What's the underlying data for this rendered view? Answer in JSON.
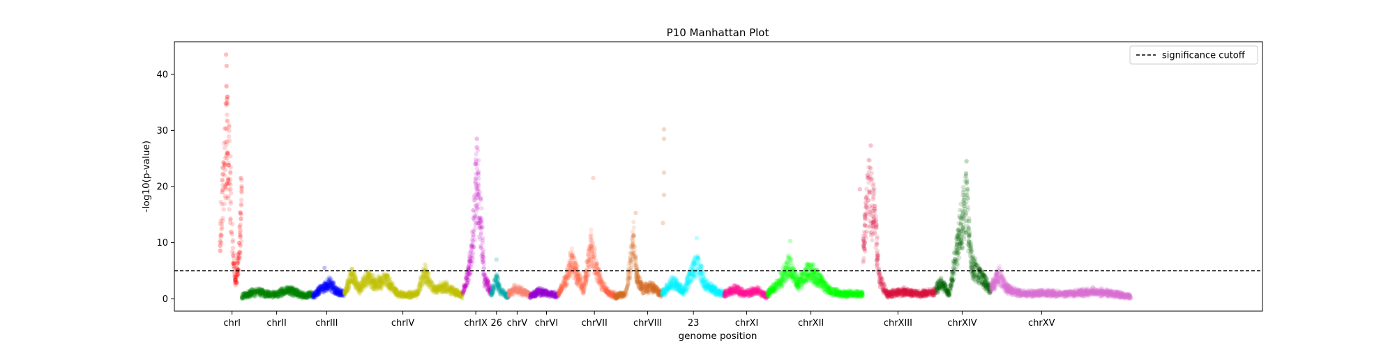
{
  "chart_data": {
    "type": "scatter",
    "title": "P10 Manhattan Plot",
    "xlabel": "genome position",
    "ylabel": "-log10(p-value)",
    "ylim": [
      -2.2,
      45.8
    ],
    "xlim": [
      0,
      100
    ],
    "y_ticks": [
      0,
      10,
      20,
      30,
      40
    ],
    "grid": false,
    "legend": {
      "position": "top-right",
      "entries": [
        "significance cutoff"
      ]
    },
    "significance_cutoff": 5,
    "chromosomes": [
      {
        "label": "chrI",
        "color": "#ff0000",
        "range": [
          4.2,
          6.2
        ],
        "tick": 5.3,
        "profile": [
          [
            4.2,
            13
          ],
          [
            4.5,
            24
          ],
          [
            4.8,
            34
          ],
          [
            5.0,
            30
          ],
          [
            5.2,
            20
          ],
          [
            5.4,
            9
          ],
          [
            5.6,
            3.5
          ],
          [
            5.9,
            8
          ],
          [
            6.2,
            20
          ]
        ]
      },
      {
        "label": "chrII",
        "color": "#008000",
        "range": [
          6.2,
          12.7
        ],
        "tick": 9.4,
        "profile": [
          [
            6.2,
            0.5
          ],
          [
            7.5,
            1.5
          ],
          [
            9,
            0.8
          ],
          [
            10.5,
            1.8
          ],
          [
            12,
            0.6
          ],
          [
            12.7,
            1
          ]
        ]
      },
      {
        "label": "chrIII",
        "color": "#0000ff",
        "range": [
          12.7,
          15.6
        ],
        "tick": 14.0,
        "profile": [
          [
            12.7,
            0.5
          ],
          [
            13.5,
            2
          ],
          [
            14.3,
            3.2
          ],
          [
            15.0,
            1.5
          ],
          [
            15.6,
            1
          ]
        ]
      },
      {
        "label": "chrIV",
        "color": "#bfbf00",
        "range": [
          15.6,
          26.5
        ],
        "tick": 21.0,
        "profile": [
          [
            15.6,
            1
          ],
          [
            16.3,
            5
          ],
          [
            17.0,
            2
          ],
          [
            17.8,
            4.5
          ],
          [
            18.5,
            3
          ],
          [
            19.5,
            4
          ],
          [
            20.5,
            1
          ],
          [
            21.5,
            0.8
          ],
          [
            22.3,
            1
          ],
          [
            23.0,
            5.5
          ],
          [
            23.8,
            2
          ],
          [
            25,
            2.5
          ],
          [
            26.5,
            0.5
          ]
        ]
      },
      {
        "label": "chrIX",
        "color": "#bf00bf",
        "range": [
          26.5,
          29.1
        ],
        "tick": 27.7,
        "profile": [
          [
            26.5,
            1
          ],
          [
            27.0,
            5
          ],
          [
            27.4,
            11
          ],
          [
            27.8,
            26
          ],
          [
            28.2,
            15
          ],
          [
            28.5,
            4
          ],
          [
            29.1,
            1.5
          ]
        ]
      },
      {
        "label": "26",
        "color": "#00aaaa",
        "range": [
          29.1,
          30.7
        ],
        "tick": 29.6,
        "profile": [
          [
            29.1,
            1
          ],
          [
            29.6,
            4
          ],
          [
            30.0,
            1.5
          ],
          [
            30.7,
            0.5
          ]
        ]
      },
      {
        "label": "chrV",
        "color": "#fa8072",
        "range": [
          30.7,
          32.7
        ],
        "tick": 31.5,
        "profile": [
          [
            30.7,
            1
          ],
          [
            31.3,
            2
          ],
          [
            32.0,
            1.5
          ],
          [
            32.7,
            0.8
          ]
        ]
      },
      {
        "label": "chrVI",
        "color": "#9400d3",
        "range": [
          32.7,
          35.3
        ],
        "tick": 34.2,
        "profile": [
          [
            32.7,
            0.5
          ],
          [
            33.5,
            1.5
          ],
          [
            34.5,
            1
          ],
          [
            35.3,
            0.8
          ]
        ]
      },
      {
        "label": "chrVII",
        "color": "#ff6347",
        "range": [
          35.3,
          40.5
        ],
        "tick": 38.6,
        "profile": [
          [
            35.3,
            1
          ],
          [
            36.0,
            4
          ],
          [
            36.5,
            8
          ],
          [
            37.0,
            5
          ],
          [
            37.6,
            2
          ],
          [
            38.3,
            11
          ],
          [
            38.8,
            6
          ],
          [
            39.3,
            3
          ],
          [
            40.0,
            1
          ],
          [
            40.5,
            0.8
          ]
        ]
      },
      {
        "label": "chrVIII",
        "color": "#d2691e",
        "range": [
          40.5,
          44.8
        ],
        "tick": 43.5,
        "profile": [
          [
            40.5,
            0.5
          ],
          [
            41.5,
            1
          ],
          [
            42.2,
            12
          ],
          [
            42.5,
            5
          ],
          [
            43.0,
            2
          ],
          [
            43.8,
            2.5
          ],
          [
            44.8,
            1
          ]
        ]
      },
      {
        "label": "23",
        "color": "#00f5ff",
        "range": [
          44.8,
          50.5
        ],
        "tick": 47.7,
        "profile": [
          [
            44.8,
            1
          ],
          [
            45.8,
            3.5
          ],
          [
            46.8,
            1.5
          ],
          [
            48.0,
            8
          ],
          [
            48.8,
            3
          ],
          [
            49.8,
            1.5
          ],
          [
            50.5,
            1
          ]
        ]
      },
      {
        "label": "chrXI",
        "color": "#ff1493",
        "range": [
          50.5,
          54.5
        ],
        "tick": 52.6,
        "profile": [
          [
            50.5,
            1
          ],
          [
            51.5,
            2
          ],
          [
            52.5,
            1
          ],
          [
            53.5,
            1.8
          ],
          [
            54.5,
            0.5
          ]
        ]
      },
      {
        "label": "chrXII",
        "color": "#00ff00",
        "range": [
          54.5,
          63.3
        ],
        "tick": 58.5,
        "profile": [
          [
            54.5,
            1
          ],
          [
            55.5,
            3
          ],
          [
            56.5,
            7
          ],
          [
            57.3,
            3
          ],
          [
            58.3,
            6
          ],
          [
            59.3,
            4
          ],
          [
            60.3,
            1.5
          ],
          [
            61.5,
            1
          ],
          [
            63.3,
            1
          ]
        ]
      },
      {
        "label": "chrXIII",
        "color": "#dc143c",
        "range": [
          63.3,
          70.0
        ],
        "tick": 66.5,
        "profile": [
          [
            63.3,
            10
          ],
          [
            63.8,
            22
          ],
          [
            64.3,
            18
          ],
          [
            64.8,
            4
          ],
          [
            65.5,
            1
          ],
          [
            67.0,
            1.5
          ],
          [
            68.5,
            1
          ],
          [
            70.0,
            1.5
          ]
        ]
      },
      {
        "label": "chrXIV",
        "color": "#006400",
        "range": [
          70.0,
          75.0
        ],
        "tick": 72.4,
        "profile": [
          [
            70.0,
            2
          ],
          [
            70.5,
            3.5
          ],
          [
            71.2,
            1
          ],
          [
            72.2,
            14
          ],
          [
            72.8,
            20
          ],
          [
            73.3,
            7
          ],
          [
            74.0,
            5
          ],
          [
            75.0,
            2
          ]
        ]
      },
      {
        "label": "chrXV",
        "color": "#da70d6",
        "range": [
          75.0,
          87.9
        ],
        "tick": 79.7,
        "profile": [
          [
            75.0,
            2
          ],
          [
            75.8,
            5
          ],
          [
            76.5,
            2
          ],
          [
            78.0,
            1
          ],
          [
            80.0,
            1.2
          ],
          [
            82.0,
            1
          ],
          [
            84.5,
            1.5
          ],
          [
            86.5,
            1
          ],
          [
            87.9,
            0.5
          ]
        ]
      }
    ],
    "outliers": [
      {
        "x": 4.75,
        "y": 43.5,
        "color": "#ff0000"
      },
      {
        "x": 4.8,
        "y": 41.5,
        "color": "#ff0000"
      },
      {
        "x": 4.85,
        "y": 36,
        "color": "#ff0000"
      },
      {
        "x": 4.4,
        "y": 19,
        "color": "#ff0000"
      },
      {
        "x": 6.1,
        "y": 21.5,
        "color": "#ff0000"
      },
      {
        "x": 27.8,
        "y": 28.5,
        "color": "#bf00bf"
      },
      {
        "x": 29.6,
        "y": 7,
        "color": "#00aaaa"
      },
      {
        "x": 38.5,
        "y": 21.5,
        "color": "#ff6347"
      },
      {
        "x": 42.4,
        "y": 15.3,
        "color": "#d2691e"
      },
      {
        "x": 45.0,
        "y": 30.2,
        "color": "#d2691e"
      },
      {
        "x": 45.0,
        "y": 28.5,
        "color": "#d2691e"
      },
      {
        "x": 45.0,
        "y": 22.5,
        "color": "#d2691e"
      },
      {
        "x": 45.0,
        "y": 18.5,
        "color": "#d2691e"
      },
      {
        "x": 44.9,
        "y": 13.5,
        "color": "#d2691e"
      },
      {
        "x": 48.0,
        "y": 10.8,
        "color": "#00f5ff"
      },
      {
        "x": 56.6,
        "y": 10.3,
        "color": "#00ff00"
      },
      {
        "x": 64.0,
        "y": 27.3,
        "color": "#dc143c"
      },
      {
        "x": 63.0,
        "y": 19.5,
        "color": "#dc143c"
      },
      {
        "x": 72.8,
        "y": 24.5,
        "color": "#006400"
      },
      {
        "x": 13.8,
        "y": 5.5,
        "color": "#0000ff"
      }
    ]
  }
}
